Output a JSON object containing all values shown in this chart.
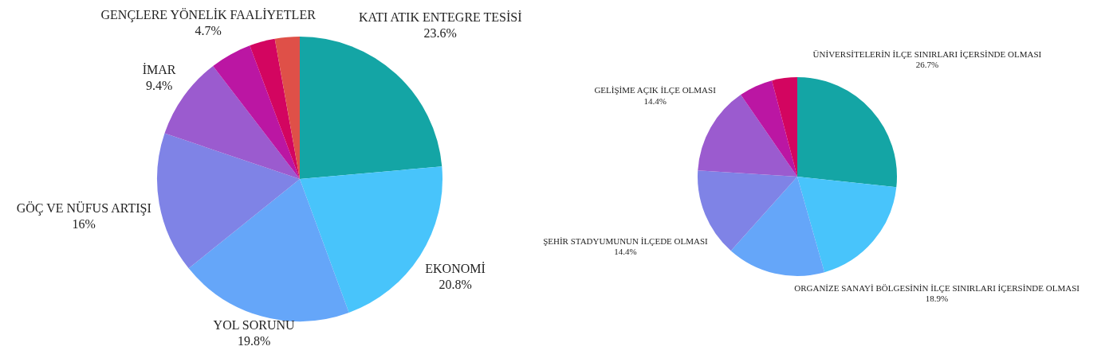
{
  "chart_data": [
    {
      "type": "pie",
      "categories": [
        "KATI ATIK ENTEGRE TESİSİ",
        "EKONOMİ",
        "YOL SORUNU",
        "GÖÇ VE NÜFUS ARTIŞI",
        "İMAR",
        "GENÇLERE YÖNELİK FAALİYETLER",
        null,
        null
      ],
      "values": [
        23.6,
        20.8,
        19.8,
        16,
        9.4,
        4.7,
        2.9,
        2.8
      ],
      "colors": [
        "#14a5a5",
        "#48c4fb",
        "#65a6f9",
        "#7f83e6",
        "#9b5bcf",
        "#bb16a3",
        "#d30560",
        "#df5048"
      ],
      "value_labels": [
        "23.6%",
        "20.8%",
        "19.8%",
        "16%",
        "9.4%",
        "4.7%",
        null,
        null
      ]
    },
    {
      "type": "pie",
      "categories": [
        "ÜNİVERSİTELERİN İLÇE SINIRLARI İÇERSİNDE OLMASI",
        "ORGANİZE SANAYİ BÖLGESİNİN İLÇE SINIRLARI İÇERSİNDE OLMASI",
        null,
        "ŞEHİR STADYUMUNUN İLÇEDE OLMASI",
        "GELİŞİME AÇIK İLÇE OLMASI",
        null,
        null
      ],
      "values": [
        26.7,
        18.9,
        16.0,
        14.4,
        14.4,
        5.5,
        4.1
      ],
      "colors": [
        "#14a5a5",
        "#48c4fb",
        "#65a6f9",
        "#7f83e6",
        "#9b5bcf",
        "#bb16a3",
        "#d30560"
      ],
      "value_labels": [
        "26.7%",
        "18.9%",
        null,
        "14.4%",
        "14.4%",
        null,
        null
      ]
    }
  ]
}
